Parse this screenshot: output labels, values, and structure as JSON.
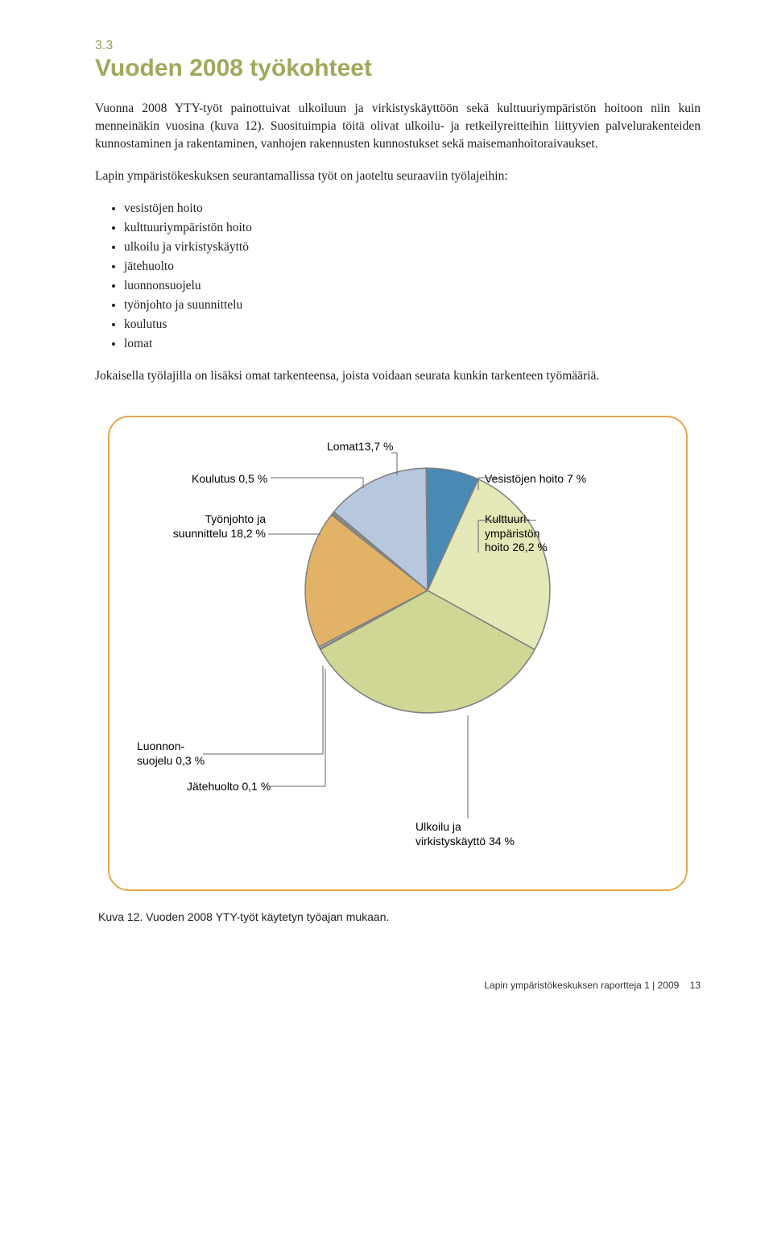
{
  "section_number": "3.3",
  "title": "Vuoden 2008 työkohteet",
  "para1": "Vuonna 2008 YTY-työt painottuivat ulkoiluun ja virkistyskäyttöön sekä kulttuuriympäristön hoitoon niin kuin menneinäkin vuosina (kuva 12). Suosituimpia töitä olivat ulkoilu- ja retkeilyreitteihin liittyvien palvelurakenteiden kunnostaminen ja rakentaminen, vanhojen rakennusten kunnostukset sekä maisemanhoitoraivaukset.",
  "para2": "Lapin ympäristökeskuksen seurantamallissa työt on jaoteltu seuraaviin työlajeihin:",
  "bullets": [
    "vesistöjen hoito",
    "kulttuuriympäristön hoito",
    "ulkoilu ja virkistyskäyttö",
    "jätehuolto",
    "luonnonsuojelu",
    "työnjohto ja suunnittelu",
    "koulutus",
    "lomat"
  ],
  "para3": "Jokaisella työlajilla on lisäksi omat tarkenteensa, joista voidaan seurata kunkin tarkenteen työmääriä.",
  "chart": {
    "type": "pie",
    "background_color": "#ffffff",
    "border_color": "#e5a64a",
    "border_radius": 26,
    "label_fontsize": 14,
    "slices": [
      {
        "label": "Vesistöjen hoito 7 %",
        "value": 7.0,
        "color": "#4a89b3"
      },
      {
        "label": "Kulttuuri-\nympäristön\nhoito 26,2 %",
        "value": 26.2,
        "color": "#e4e7b6"
      },
      {
        "label": "Ulkoilu ja\nvirkistyskäyttö 34 %",
        "value": 34.0,
        "color": "#d0d795"
      },
      {
        "label": "Jätehuolto 0,1 %",
        "value": 0.1,
        "color": "#8aa84a"
      },
      {
        "label": "Luonnon-\nsuojelu 0,3 %",
        "value": 0.3,
        "color": "#b0b0b0"
      },
      {
        "label": "Työnjohto ja\nsuunnittelu 18,2 %",
        "value": 18.2,
        "color": "#e2b367"
      },
      {
        "label": "Koulutus 0,5 %",
        "value": 0.5,
        "color": "#888888"
      },
      {
        "label": "Lomat13,7 %",
        "value": 13.7,
        "color": "#b7c8de"
      }
    ],
    "stroke_color": "#808080",
    "stroke_width": 1
  },
  "caption": "Kuva 12. Vuoden 2008 YTY-työt käytetyn työajan mukaan.",
  "footer_text": "Lapin ympäristökeskuksen raportteja  1 | 2009",
  "footer_page": "13"
}
